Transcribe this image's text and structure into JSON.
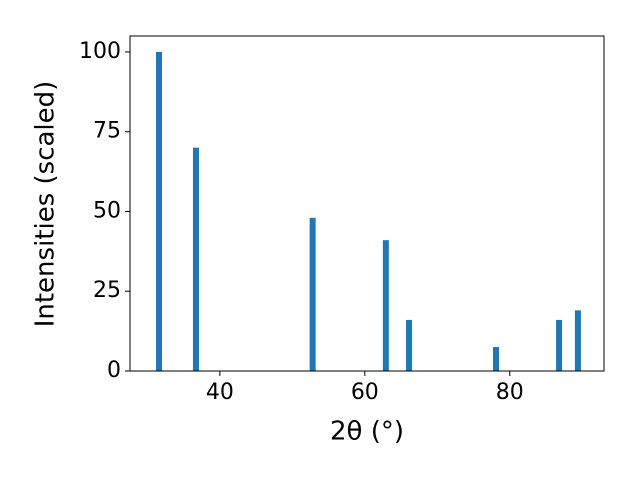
{
  "chart_data": {
    "type": "bar",
    "x": [
      31.6,
      36.7,
      52.8,
      62.9,
      66.1,
      78.1,
      86.8,
      89.4
    ],
    "values": [
      100,
      70,
      48,
      41,
      16,
      7.5,
      16,
      19
    ],
    "color": "#1f77b4",
    "xlabel": "2θ (°)",
    "ylabel": "Intensities (scaled)",
    "xlim": [
      27.6,
      93.0
    ],
    "xticks": [
      40,
      60,
      80
    ],
    "ylim": [
      0,
      105
    ],
    "yticks": [
      0,
      25,
      50,
      75,
      100
    ],
    "grid": false
  }
}
